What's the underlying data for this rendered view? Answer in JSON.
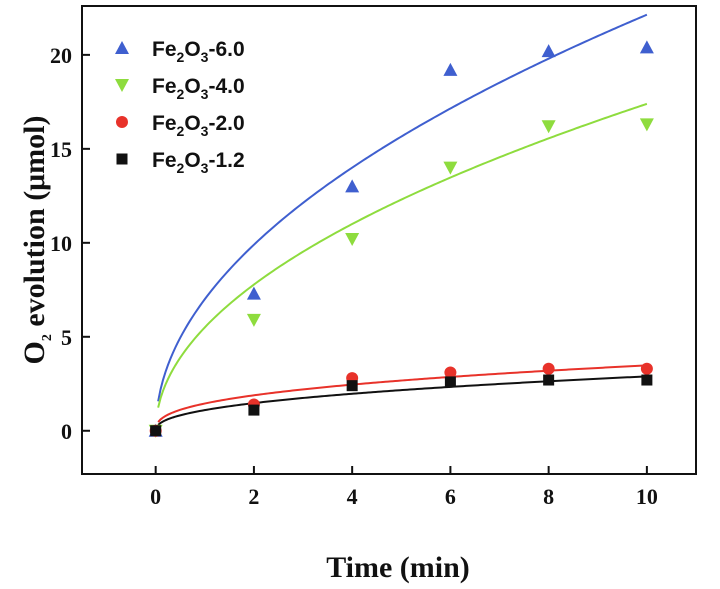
{
  "chart_data": {
    "type": "scatter",
    "xlabel": "Time (min)",
    "ylabel": {
      "main": "O",
      "sub": "2",
      "rest": " evolution (μmol)"
    },
    "xlim": [
      -1.5,
      11.0
    ],
    "ylim": [
      -2.3,
      22.6
    ],
    "xticks": [
      0,
      2,
      4,
      6,
      8,
      10
    ],
    "yticks": [
      0,
      5,
      10,
      15,
      20
    ],
    "grid": false,
    "legend_position": "top-left",
    "series": [
      {
        "name": {
          "a": "Fe",
          "b": "2",
          "c": "O",
          "d": "3",
          "e": "-6.0"
        },
        "marker": "triangle-up",
        "color": "#3f5fcf",
        "x": [
          0,
          2,
          4,
          6,
          8,
          10
        ],
        "y": [
          0,
          7.3,
          13.0,
          19.2,
          20.2,
          20.4
        ],
        "fit": {
          "a": 7.0,
          "p": 0.5
        }
      },
      {
        "name": {
          "a": "Fe",
          "b": "2",
          "c": "O",
          "d": "3",
          "e": "-4.0"
        },
        "marker": "triangle-down",
        "color": "#8edc3e",
        "x": [
          0,
          2,
          4,
          6,
          8,
          10
        ],
        "y": [
          0,
          5.9,
          10.2,
          14.0,
          16.2,
          16.3
        ],
        "fit": {
          "a": 5.5,
          "p": 0.5
        }
      },
      {
        "name": {
          "a": "Fe",
          "b": "2",
          "c": "O",
          "d": "3",
          "e": "-2.0"
        },
        "marker": "circle",
        "color": "#e8322a",
        "x": [
          0,
          2,
          4,
          6,
          8,
          10
        ],
        "y": [
          0,
          1.4,
          2.8,
          3.1,
          3.3,
          3.3
        ],
        "fit": {
          "a": 1.45,
          "p": 0.38
        }
      },
      {
        "name": {
          "a": "Fe",
          "b": "2",
          "c": "O",
          "d": "3",
          "e": "-1.2"
        },
        "marker": "square",
        "color": "#111111",
        "x": [
          0,
          2,
          4,
          6,
          8,
          10
        ],
        "y": [
          0,
          1.1,
          2.4,
          2.6,
          2.7,
          2.7
        ],
        "fit": {
          "a": 1.1,
          "p": 0.42
        }
      }
    ]
  }
}
